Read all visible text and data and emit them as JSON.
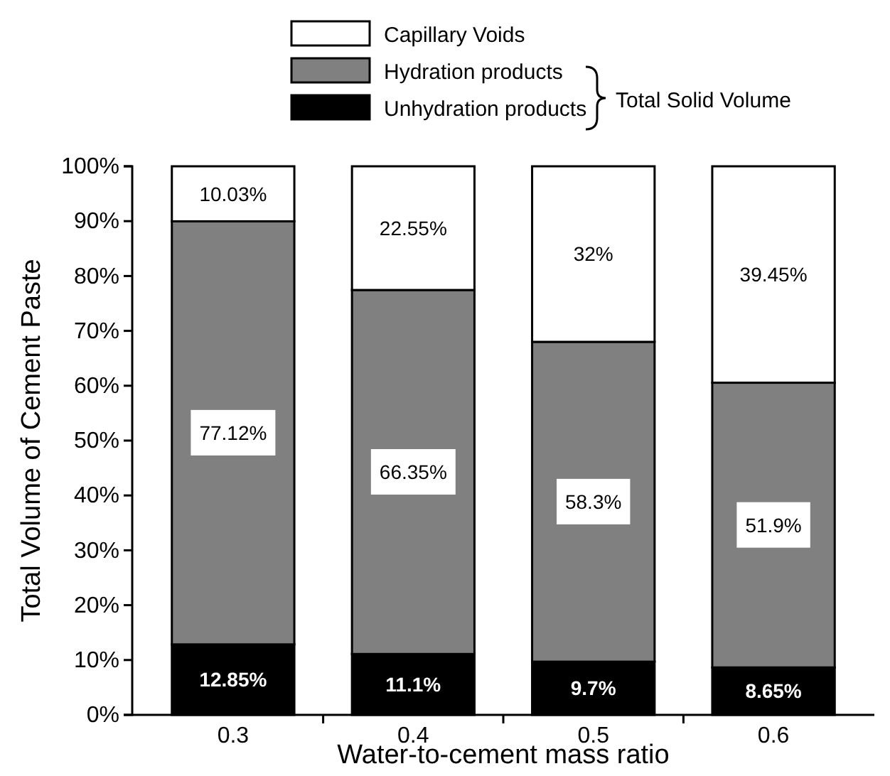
{
  "chart_data": {
    "type": "bar",
    "stacked": true,
    "xlabel": "Water-to-cement mass ratio",
    "ylabel": "Total Volume of Cement Paste",
    "categories": [
      "0.3",
      "0.4",
      "0.5",
      "0.6"
    ],
    "series": [
      {
        "name": "Unhydration products",
        "color": "#000000",
        "values": [
          12.85,
          11.1,
          9.7,
          8.65
        ],
        "value_labels": [
          "12.85%",
          "11.1%",
          "9.7%",
          "8.65%"
        ]
      },
      {
        "name": "Hydration products",
        "color": "#808080",
        "values": [
          77.12,
          66.35,
          58.3,
          51.9
        ],
        "value_labels": [
          "77.12%",
          "66.35%",
          "58.3%",
          "51.9%"
        ]
      },
      {
        "name": "Capillary Voids",
        "color": "#ffffff",
        "values": [
          10.03,
          22.55,
          32,
          39.45
        ],
        "value_labels": [
          "10.03%",
          "22.55%",
          "32%",
          "39.45%"
        ]
      }
    ],
    "ylim": [
      0,
      100
    ],
    "yticks": [
      {
        "value": 0,
        "label": "0%"
      },
      {
        "value": 10,
        "label": "10%"
      },
      {
        "value": 20,
        "label": "20%"
      },
      {
        "value": 30,
        "label": "30%"
      },
      {
        "value": 40,
        "label": "40%"
      },
      {
        "value": 50,
        "label": "50%"
      },
      {
        "value": 60,
        "label": "60%"
      },
      {
        "value": 70,
        "label": "70%"
      },
      {
        "value": 80,
        "label": "80%"
      },
      {
        "value": 90,
        "label": "90%"
      },
      {
        "value": 100,
        "label": "100%"
      }
    ],
    "legend": "top",
    "annotations": [
      "Total Solid Volume"
    ]
  }
}
